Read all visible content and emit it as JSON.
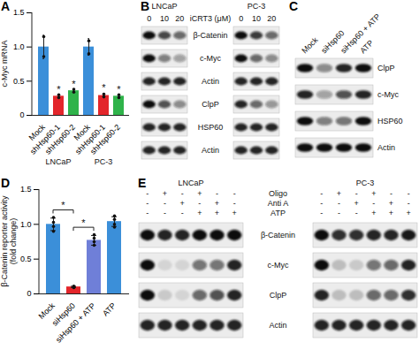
{
  "chart_data": [
    {
      "panel": "A",
      "type": "bar",
      "ylabel": "c-Myc mRNA",
      "categories": [
        "Mock",
        "shHsp60-1",
        "shHsp60-2",
        "Mock",
        "shHsp60-1",
        "shHsp60-2"
      ],
      "groups": [
        "LNCaP",
        "PC-3"
      ],
      "values": [
        1.0,
        0.28,
        0.36,
        1.0,
        0.29,
        0.28
      ],
      "errors": [
        0.17,
        0.02,
        0.02,
        0.12,
        0.03,
        0.02
      ],
      "points": [
        [
          1.15,
          0.86
        ],
        [
          0.26,
          0.3
        ],
        [
          0.34,
          0.38
        ],
        [
          1.09,
          0.9
        ],
        [
          0.27,
          0.31
        ],
        [
          0.26,
          0.3
        ]
      ],
      "annotations": [
        null,
        "*",
        "*",
        null,
        "*",
        "*"
      ],
      "colors": [
        "#3b8fd9",
        "#e3262b",
        "#2fb34a",
        "#3b8fd9",
        "#e3262b",
        "#2fb34a"
      ],
      "ylim": [
        0,
        1.5
      ],
      "yticks": [
        0,
        0.5,
        {
          "value": 1,
          "label": "1.0"
        },
        1.5
      ]
    },
    {
      "panel": "D",
      "type": "bar",
      "ylabel": [
        "β-Catenin reporter activity",
        "(fold change)"
      ],
      "categories": [
        "Mock",
        "siHsp60",
        "siHsp60 + ATP",
        "ATP"
      ],
      "values": [
        1.0,
        0.1,
        0.77,
        1.04
      ],
      "errors": [
        0.09,
        0.01,
        0.07,
        0.07
      ],
      "points": [
        [
          0.9,
          0.97,
          1.03,
          1.1
        ],
        [
          0.09,
          0.1,
          0.1,
          0.11
        ],
        [
          0.7,
          0.75,
          0.8,
          0.85
        ],
        [
          0.96,
          1.0,
          1.07,
          1.12
        ]
      ],
      "comparisons": [
        {
          "from": "Mock",
          "to": "siHsp60",
          "label": "*"
        },
        {
          "from": "siHsp60",
          "to": "siHsp60 + ATP",
          "label": "*"
        }
      ],
      "colors": [
        "#3b8fd9",
        "#e3262b",
        "#6f7fd8",
        "#3b8fd9"
      ],
      "ylim": [
        0,
        1.5
      ],
      "yticks": [
        0,
        0.5,
        {
          "value": 1,
          "label": "1.0"
        },
        1.5
      ]
    }
  ],
  "blots": [
    {
      "panel": "B",
      "header": "iCRT3 (μM)",
      "rows": [
        "β-Catenin",
        "c-Myc",
        "Actin",
        "ClpP",
        "HSP60",
        "Actin"
      ],
      "groups": [
        {
          "name": "LNCaP",
          "lanes": [
            "0",
            "10",
            "20"
          ],
          "bands": [
            [
              1,
              0.75,
              0.6
            ],
            [
              1,
              0.5,
              0.35
            ],
            [
              0.9,
              0.9,
              0.9
            ],
            [
              1,
              0.7,
              0.45
            ],
            [
              0.9,
              0.9,
              0.9
            ],
            [
              0.9,
              0.9,
              0.9
            ]
          ]
        },
        {
          "name": "PC-3",
          "lanes": [
            "0",
            "10",
            "20"
          ],
          "bands": [
            [
              1,
              0.8,
              0.6
            ],
            [
              1,
              0.6,
              0.45
            ],
            [
              0.9,
              0.9,
              0.9
            ],
            [
              0.9,
              0.6,
              0.4
            ],
            [
              0.9,
              0.9,
              0.9
            ],
            [
              0.9,
              0.9,
              0.9
            ]
          ]
        }
      ]
    },
    {
      "panel": "C",
      "rows": [
        "ClpP",
        "c-Myc",
        "HSP60",
        "Actin"
      ],
      "groups": [
        {
          "lanes": [
            "Mock",
            "siHsp60",
            "siHsp60 + ATP",
            "ATP"
          ],
          "bands": [
            [
              1,
              0.45,
              0.9,
              1
            ],
            [
              0.9,
              0.35,
              0.7,
              0.9
            ],
            [
              1,
              0.5,
              0.55,
              1
            ],
            [
              1,
              1,
              1,
              1
            ]
          ]
        }
      ]
    },
    {
      "panel": "E",
      "treatments": [
        "Oligo",
        "Anti A",
        "ATP"
      ],
      "rows": [
        "β-Catenin",
        "c-Myc",
        "ClpP",
        "Actin"
      ],
      "groups": [
        {
          "name": "LNCaP",
          "signs": [
            [
              "-",
              "+",
              "-",
              "+",
              "-",
              "-"
            ],
            [
              "-",
              "-",
              "+",
              "-",
              "+",
              "-"
            ],
            [
              "-",
              "-",
              "-",
              "+",
              "+",
              "+"
            ]
          ],
          "bands": [
            [
              1,
              0.9,
              0.9,
              1,
              1,
              1
            ],
            [
              1,
              0.1,
              0.1,
              0.55,
              0.55,
              0.9
            ],
            [
              1,
              0.15,
              0.1,
              0.6,
              0.7,
              0.9
            ],
            [
              0.9,
              0.9,
              0.9,
              0.9,
              0.9,
              0.9
            ]
          ]
        },
        {
          "name": "PC-3",
          "signs": [
            [
              "-",
              "+",
              "-",
              "+",
              "-",
              "-"
            ],
            [
              "-",
              "-",
              "+",
              "-",
              "+",
              "-"
            ],
            [
              "-",
              "-",
              "-",
              "+",
              "+",
              "+"
            ]
          ],
          "bands": [
            [
              1,
              0.85,
              0.85,
              0.9,
              0.9,
              0.95
            ],
            [
              1,
              0.2,
              0.15,
              0.55,
              0.6,
              0.9
            ],
            [
              0.9,
              0.2,
              0.2,
              0.6,
              0.6,
              0.85
            ],
            [
              0.9,
              0.9,
              0.9,
              0.9,
              0.9,
              0.9
            ]
          ]
        }
      ]
    }
  ]
}
